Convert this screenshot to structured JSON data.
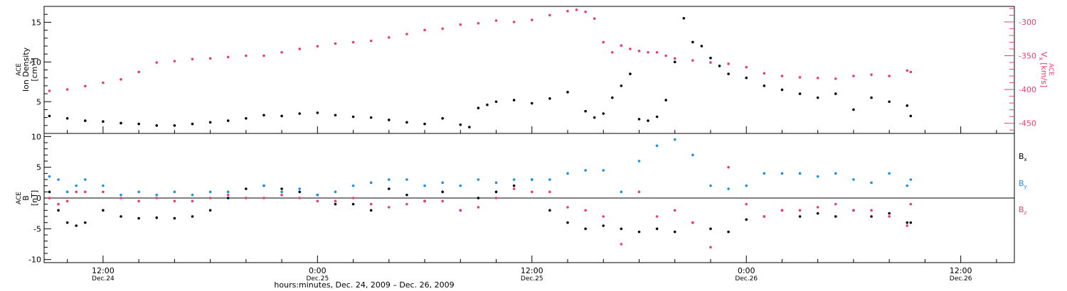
{
  "colors": {
    "black": "#000000",
    "pink": "#e83e6c",
    "blue": "#1a8fe3"
  },
  "xlabel": "hours:minutes, Dec. 24, 2009 – Dec. 26, 2009",
  "x_ticks": [
    {
      "time": "12:00",
      "date": "Dec.24",
      "hours": 12
    },
    {
      "time": "0:00",
      "date": "Dec.25",
      "hours": 24
    },
    {
      "time": "12:00",
      "date": "Dec.25",
      "hours": 36
    },
    {
      "time": "0:00",
      "date": "Dec.26",
      "hours": 48
    },
    {
      "time": "12:00",
      "date": "Dec.26",
      "hours": 60
    }
  ],
  "xlim_hours": [
    8.7,
    63
  ],
  "chart_data": [
    {
      "type": "scatter",
      "panel": "top",
      "ylabel_left": [
        "ACE",
        "Ion Density",
        "[cm",
        "-3",
        "]"
      ],
      "ylabel_right": [
        "ACE",
        "V",
        "x",
        "[km/s]"
      ],
      "ylim_left": [
        1,
        17
      ],
      "ylim_right": [
        -465,
        -277
      ],
      "yticks_left": [
        5,
        10,
        15
      ],
      "yticks_right": [
        -450,
        -400,
        -350,
        -300
      ],
      "series": [
        {
          "name": "Ion Density",
          "axis": "left",
          "color": "#000000",
          "x": [
            9,
            10,
            11,
            12,
            13,
            14,
            15,
            16,
            17,
            18,
            19,
            20,
            21,
            22,
            23,
            24,
            25,
            26,
            27,
            28,
            29,
            30,
            31,
            32,
            32.5,
            33,
            33.5,
            34,
            35,
            36,
            37,
            38,
            39,
            39.5,
            40,
            40.5,
            41,
            41.5,
            42,
            42.5,
            43,
            43.5,
            44,
            44.5,
            45,
            45.5,
            46,
            46.5,
            47,
            48,
            49,
            50,
            51,
            52,
            53,
            54,
            55,
            56,
            57,
            57.2
          ],
          "y": [
            3.2,
            2.9,
            2.6,
            2.5,
            2.3,
            2.2,
            2.0,
            2.0,
            2.2,
            2.4,
            2.6,
            2.9,
            3.3,
            3.2,
            3.5,
            3.6,
            3.3,
            3.1,
            3.0,
            2.7,
            2.4,
            2.2,
            2.9,
            2.1,
            1.8,
            4.2,
            4.6,
            5.0,
            5.2,
            4.8,
            5.4,
            6.2,
            3.8,
            3.0,
            3.5,
            5.5,
            7.0,
            8.5,
            2.8,
            2.6,
            3.1,
            5.2,
            10.0,
            15.5,
            12.5,
            12.0,
            10.5,
            9.5,
            8.5,
            8.0,
            7.0,
            6.5,
            6.0,
            5.5,
            6.0,
            4.0,
            5.5,
            5.0,
            4.5,
            3.2
          ]
        },
        {
          "name": "Vx",
          "axis": "right",
          "color": "#e83e6c",
          "x": [
            9,
            10,
            11,
            12,
            13,
            14,
            15,
            16,
            17,
            18,
            19,
            20,
            21,
            22,
            23,
            24,
            25,
            26,
            27,
            28,
            29,
            30,
            31,
            32,
            33,
            34,
            35,
            36,
            37,
            38,
            38.5,
            39,
            39.5,
            40,
            40.5,
            41,
            41.5,
            42,
            42.5,
            43,
            43.5,
            44,
            45,
            46,
            47,
            48,
            49,
            50,
            51,
            52,
            53,
            54,
            55,
            56,
            57,
            57.2
          ],
          "y": [
            -402,
            -400,
            -395,
            -390,
            -385,
            -374,
            -360,
            -358,
            -355,
            -354,
            -352,
            -350,
            -350,
            -345,
            -340,
            -336,
            -332,
            -330,
            -328,
            -323,
            -318,
            -312,
            -310,
            -304,
            -302,
            -298,
            -300,
            -297,
            -290,
            -284,
            -282,
            -285,
            -295,
            -330,
            -345,
            -335,
            -340,
            -343,
            -345,
            -345,
            -350,
            -354,
            -357,
            -360,
            -362,
            -367,
            -376,
            -380,
            -382,
            -383,
            -384,
            -380,
            -378,
            -380,
            -372,
            -374
          ]
        }
      ]
    },
    {
      "type": "scatter",
      "panel": "bottom",
      "ylabel_left": [
        "ACE",
        "B",
        "[nT]"
      ],
      "ylim": [
        -10.5,
        10.5
      ],
      "yticks": [
        -10,
        -5,
        0,
        5,
        10
      ],
      "legend": [
        "B",
        "B",
        "B"
      ],
      "legend_sub": [
        "x",
        "y",
        "z"
      ],
      "series": [
        {
          "name": "Bx",
          "color": "#000000",
          "x": [
            9,
            9.5,
            10,
            10.5,
            11,
            12,
            13,
            14,
            15,
            16,
            17,
            18,
            19,
            20,
            21,
            22,
            23,
            24,
            25,
            26,
            27,
            28,
            29,
            30,
            31,
            32,
            33,
            34,
            35,
            36,
            37,
            38,
            39,
            40,
            41,
            42,
            43,
            44,
            45,
            46,
            47,
            48,
            49,
            50,
            51,
            52,
            53,
            54,
            55,
            56,
            57,
            57.2
          ],
          "y": [
            1.0,
            -2.0,
            -4.0,
            -4.5,
            -4.0,
            -2.0,
            -3.0,
            -3.3,
            -3.2,
            -3.3,
            -3.0,
            -2.0,
            0.0,
            1.5,
            2.0,
            1.5,
            1.0,
            0.5,
            -1.0,
            -1.0,
            -2.0,
            1.5,
            0.5,
            -0.5,
            1.0,
            -2.0,
            0.0,
            1.0,
            2.0,
            3.0,
            -2.0,
            -4.0,
            -5.0,
            -4.5,
            -5.0,
            -5.5,
            -5.0,
            -5.5,
            -4.0,
            -5.0,
            -5.5,
            -3.5,
            -3.0,
            -2.0,
            -3.0,
            -2.5,
            -3.0,
            -2.0,
            -3.0,
            -2.5,
            -4.0,
            -4.0
          ]
        },
        {
          "name": "By",
          "color": "#1a8fe3",
          "x": [
            9,
            9.5,
            10,
            10.5,
            11,
            12,
            13,
            14,
            15,
            16,
            17,
            18,
            19,
            20,
            21,
            22,
            23,
            24,
            25,
            26,
            27,
            28,
            29,
            30,
            31,
            32,
            33,
            34,
            35,
            36,
            37,
            38,
            39,
            40,
            41,
            42,
            43,
            44,
            45,
            46,
            47,
            48,
            49,
            50,
            51,
            52,
            53,
            54,
            55,
            56,
            57,
            57.2
          ],
          "y": [
            3.5,
            3.0,
            1.0,
            2.0,
            3.0,
            2.0,
            0.5,
            1.0,
            0.5,
            1.0,
            0.5,
            1.0,
            1.0,
            0.0,
            2.0,
            1.0,
            1.5,
            0.5,
            1.0,
            2.0,
            2.5,
            3.0,
            3.0,
            2.0,
            2.5,
            2.0,
            3.0,
            2.5,
            3.0,
            3.0,
            3.0,
            4.0,
            4.5,
            4.5,
            1.0,
            6.0,
            8.5,
            9.5,
            7.0,
            2.0,
            1.5,
            2.0,
            4.0,
            4.0,
            4.0,
            3.5,
            4.0,
            3.0,
            2.5,
            4.0,
            2.0,
            3.0
          ]
        },
        {
          "name": "Bz",
          "color": "#e83e6c",
          "x": [
            9,
            9.5,
            10,
            10.5,
            11,
            12,
            13,
            14,
            15,
            16,
            17,
            18,
            19,
            20,
            21,
            22,
            23,
            24,
            25,
            26,
            27,
            28,
            29,
            30,
            31,
            32,
            33,
            34,
            35,
            36,
            37,
            38,
            39,
            40,
            41,
            42,
            43,
            44,
            45,
            46,
            47,
            48,
            49,
            50,
            51,
            52,
            53,
            54,
            55,
            56,
            57,
            57.2
          ],
          "y": [
            0.0,
            -1.0,
            -0.5,
            1.0,
            1.0,
            1.0,
            0.0,
            -0.5,
            0.0,
            -0.5,
            -0.5,
            0.0,
            0.5,
            0.0,
            0.0,
            0.5,
            0.0,
            -0.5,
            -0.5,
            0.0,
            -1.0,
            -1.5,
            -1.0,
            -0.5,
            -0.5,
            -2.0,
            -1.5,
            0.0,
            1.5,
            1.0,
            1.0,
            -1.5,
            -2.0,
            -3.0,
            -7.5,
            1.0,
            -3.0,
            -2.0,
            -4.0,
            -8.0,
            5.0,
            -1.0,
            -3.0,
            -2.0,
            -2.0,
            -1.5,
            -1.0,
            -2.0,
            -2.0,
            -3.0,
            -4.5,
            -1.0
          ]
        }
      ]
    }
  ]
}
